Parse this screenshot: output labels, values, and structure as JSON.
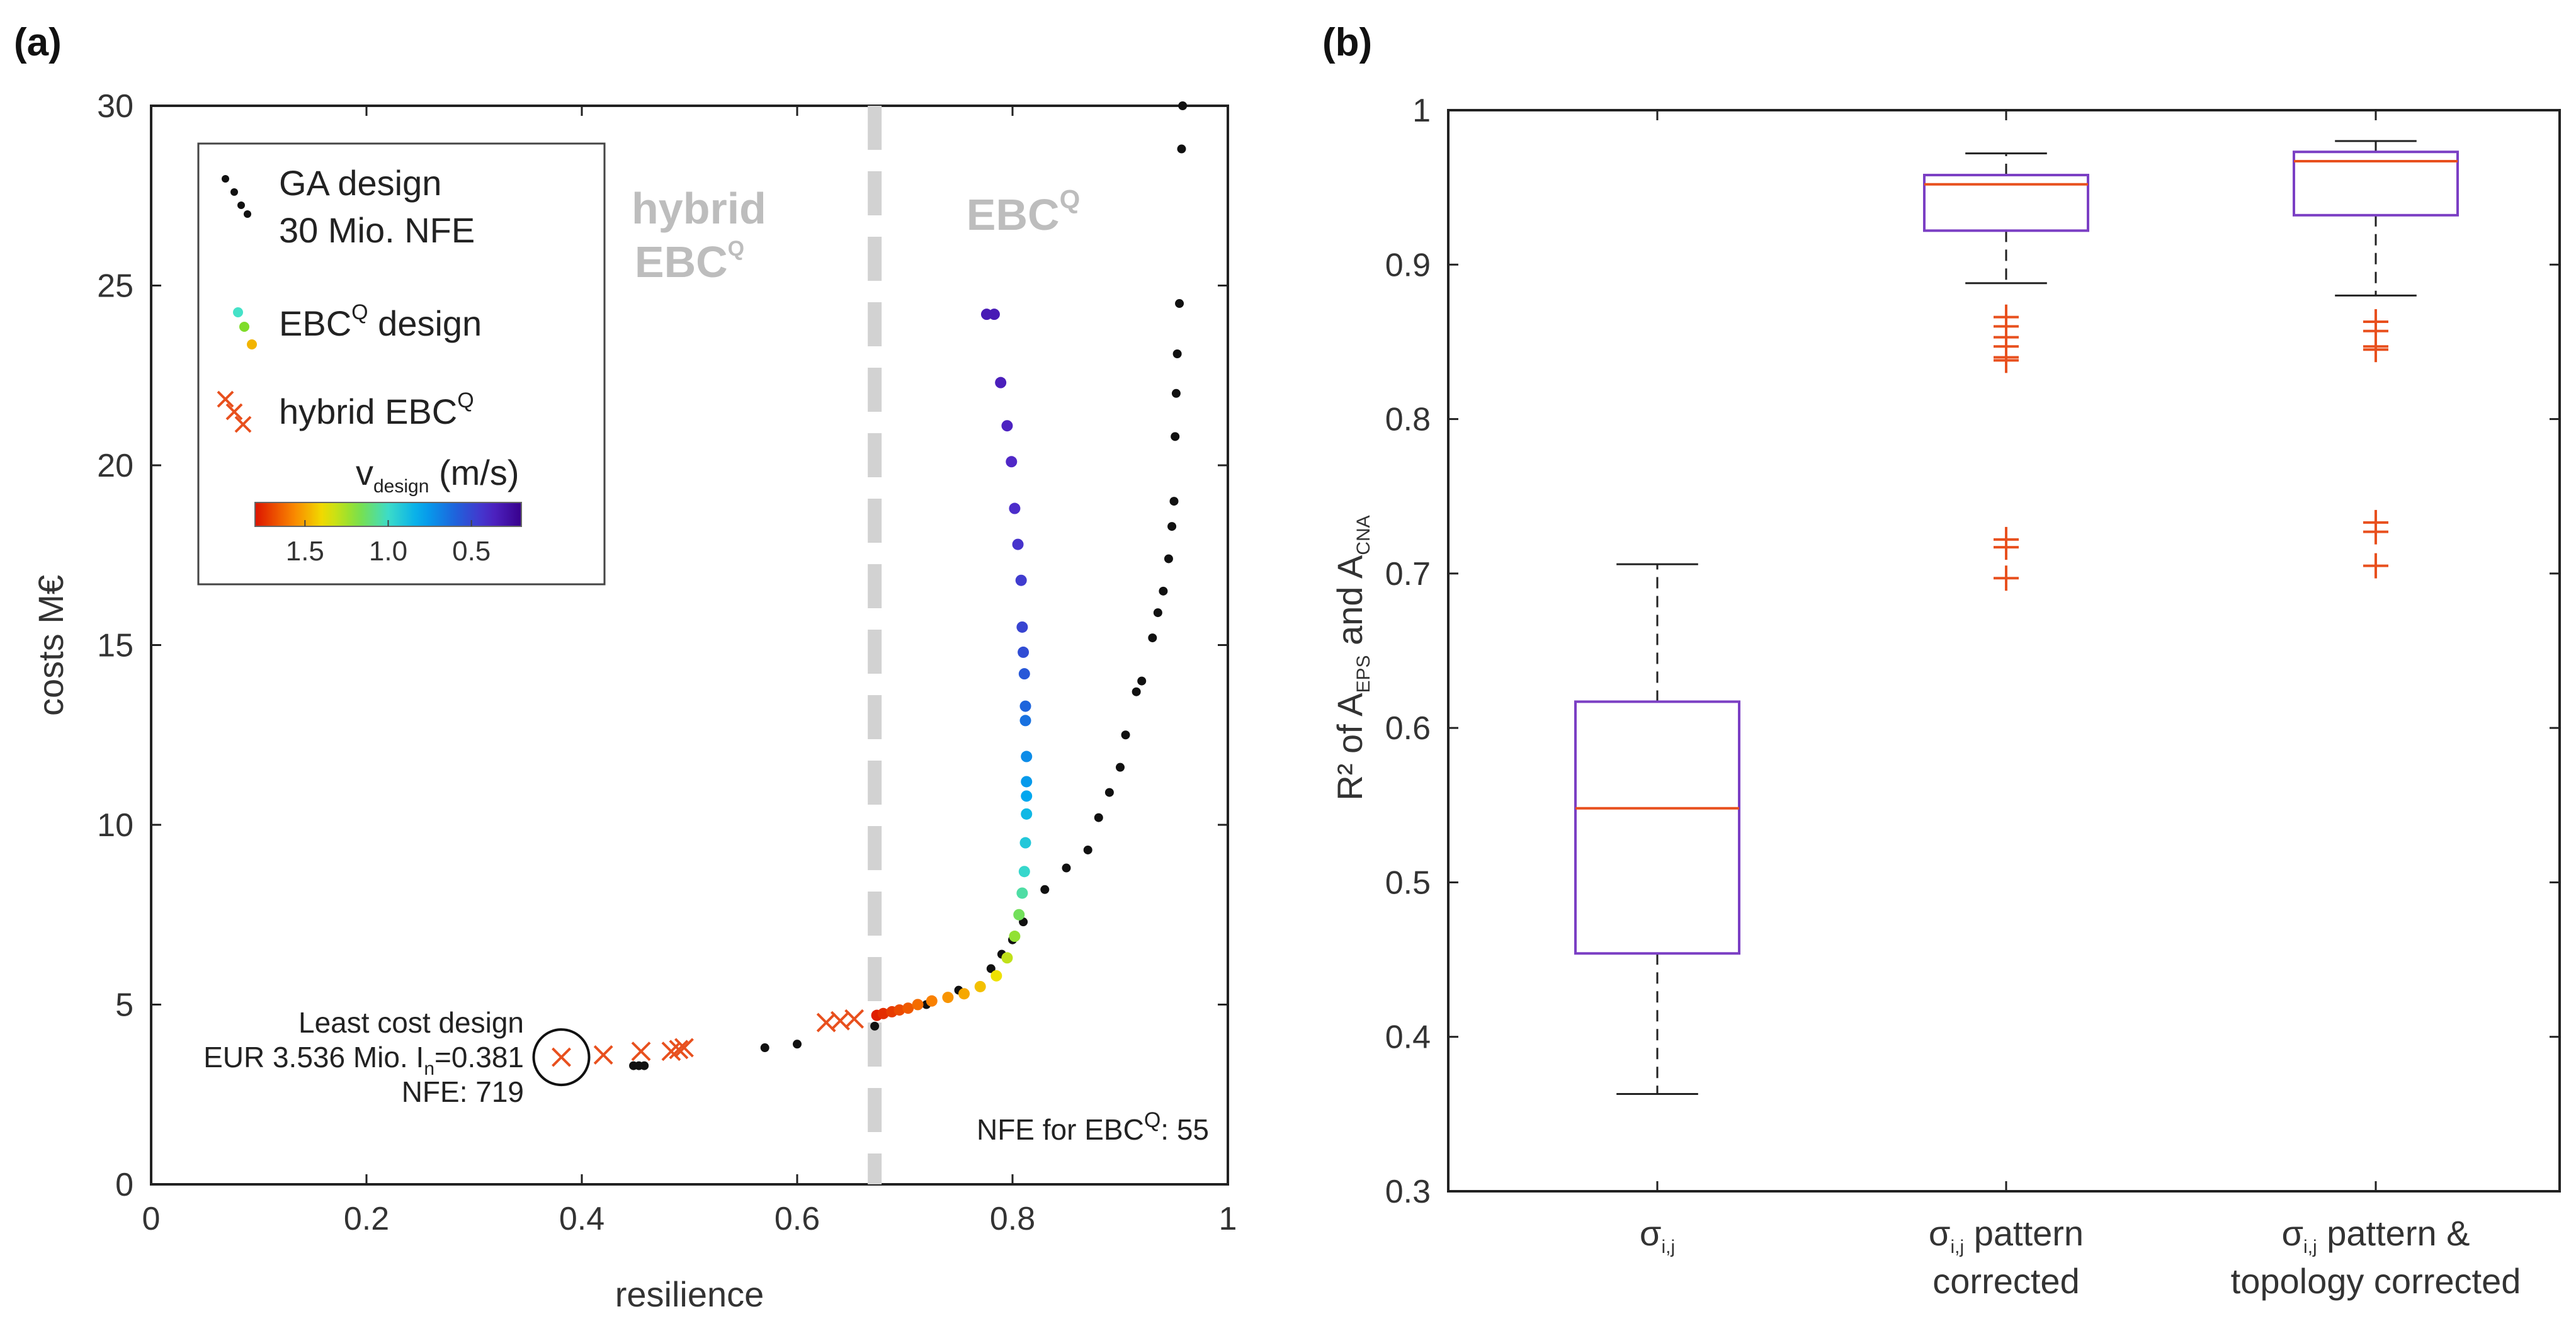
{
  "chart_data": [
    {
      "panel": "(a)",
      "type": "scatter",
      "xlabel": "resilience",
      "ylabel": "costs M€",
      "xlim": [
        0,
        1
      ],
      "ylim": [
        0,
        30
      ],
      "xticks": [
        "0",
        "0.2",
        "0.4",
        "0.6",
        "0.8",
        "1"
      ],
      "yticks": [
        "0",
        "5",
        "10",
        "15",
        "20",
        "25",
        "30"
      ],
      "grid": false,
      "legend_position": "top-left",
      "boundary_line_x": 0.672,
      "regions": {
        "left": [
          "hybrid",
          "EBC",
          "Q"
        ],
        "right": [
          "EBC",
          "Q"
        ]
      },
      "legend": {
        "ga_line1": "GA design",
        "ga_line2": "30 Mio. NFE",
        "ebc_main": "EBC",
        "ebc_sup": "Q",
        "ebc_tail": " design",
        "hybrid_main": "hybrid EBC",
        "hybrid_sup": "Q",
        "colorbar_title": "v",
        "colorbar_sub": "design",
        "colorbar_unit": " (m/s)",
        "colorbar_ticks": [
          "1.5",
          "1.0",
          "0.5"
        ],
        "colormap_vmin": 0.2,
        "colormap_vmax": 1.8
      },
      "annotations": {
        "least_cost_line1": "Least cost design",
        "least_cost_line2_a": "EUR 3.536 Mio. I",
        "least_cost_line2_sub": "n",
        "least_cost_line2_b": "=0.381",
        "least_cost_line3": "NFE: 719",
        "nfe_main": "NFE for EBC",
        "nfe_sup": "Q",
        "nfe_tail": ": 55"
      },
      "series": [
        {
          "name": "GA design 30 Mio. NFE",
          "marker": "dot",
          "color": "#111111",
          "x": [
            0.448,
            0.453,
            0.458,
            0.57,
            0.6,
            0.672,
            0.72,
            0.75,
            0.78,
            0.79,
            0.8,
            0.81,
            0.83,
            0.85,
            0.87,
            0.88,
            0.89,
            0.9,
            0.905,
            0.915,
            0.92,
            0.93,
            0.935,
            0.94,
            0.945,
            0.948,
            0.95,
            0.951,
            0.952,
            0.953,
            0.955,
            0.957,
            0.958
          ],
          "y": [
            3.3,
            3.3,
            3.3,
            3.8,
            3.9,
            4.4,
            5.0,
            5.4,
            6.0,
            6.4,
            6.8,
            7.3,
            8.2,
            8.8,
            9.3,
            10.2,
            10.9,
            11.6,
            12.5,
            13.7,
            14.0,
            15.2,
            15.9,
            16.5,
            17.4,
            18.3,
            19.0,
            20.8,
            22.0,
            23.1,
            24.5,
            28.8,
            30.0
          ]
        },
        {
          "name": "EBC^Q design",
          "marker": "dot",
          "colored_by": "v_design",
          "x": [
            0.674,
            0.68,
            0.688,
            0.695,
            0.703,
            0.712,
            0.725,
            0.74,
            0.755,
            0.77,
            0.785,
            0.795,
            0.802,
            0.806,
            0.809,
            0.811,
            0.812,
            0.813,
            0.813,
            0.813,
            0.813,
            0.812,
            0.812,
            0.811,
            0.81,
            0.809,
            0.808,
            0.805,
            0.802,
            0.799,
            0.795,
            0.789,
            0.783,
            0.776
          ],
          "y": [
            4.7,
            4.75,
            4.8,
            4.85,
            4.9,
            5.0,
            5.1,
            5.2,
            5.3,
            5.5,
            5.8,
            6.3,
            6.9,
            7.5,
            8.1,
            8.7,
            9.5,
            10.3,
            10.8,
            11.2,
            11.9,
            12.9,
            13.3,
            14.2,
            14.8,
            15.5,
            16.8,
            17.8,
            18.8,
            20.1,
            21.1,
            22.3,
            24.2,
            24.2
          ],
          "v": [
            1.78,
            1.75,
            1.72,
            1.69,
            1.66,
            1.62,
            1.58,
            1.54,
            1.5,
            1.45,
            1.38,
            1.3,
            1.22,
            1.15,
            1.05,
            0.98,
            0.92,
            0.86,
            0.8,
            0.76,
            0.72,
            0.64,
            0.6,
            0.56,
            0.52,
            0.49,
            0.46,
            0.43,
            0.41,
            0.39,
            0.37,
            0.35,
            0.33,
            0.33
          ]
        },
        {
          "name": "hybrid EBC^Q",
          "marker": "x",
          "color": "#e8501e",
          "x": [
            0.381,
            0.42,
            0.455,
            0.483,
            0.49,
            0.495,
            0.627,
            0.64,
            0.653
          ],
          "y": [
            3.536,
            3.6,
            3.7,
            3.7,
            3.75,
            3.8,
            4.5,
            4.55,
            4.6
          ]
        }
      ]
    },
    {
      "panel": "(b)",
      "type": "box",
      "ylabel_main": "R² of A",
      "ylabel_sub1": "EPS",
      "ylabel_mid": "  and A",
      "ylabel_sub2": "CNA",
      "ylim": [
        0.3,
        1
      ],
      "yticks": [
        "0.3",
        "0.4",
        "0.5",
        "0.6",
        "0.7",
        "0.8",
        "0.9",
        "1"
      ],
      "grid": false,
      "box_color": "#7b3fc4",
      "median_color": "#e8501e",
      "outlier_color": "#e8501e",
      "boxes": [
        {
          "sym": "σ",
          "sub": "i,j",
          "label_tail": "",
          "label_line2": "",
          "whisker_low": 0.363,
          "q1": 0.454,
          "median": 0.548,
          "q3": 0.617,
          "whisker_high": 0.706,
          "outliers": []
        },
        {
          "sym": "σ",
          "sub": "i,j",
          "label_tail": " pattern",
          "label_line2": "corrected",
          "whisker_low": 0.888,
          "q1": 0.922,
          "median": 0.952,
          "q3": 0.958,
          "whisker_high": 0.972,
          "outliers": [
            0.866,
            0.86,
            0.853,
            0.847,
            0.84,
            0.838,
            0.722,
            0.717,
            0.697
          ]
        },
        {
          "sym": "σ",
          "sub": "i,j",
          "label_tail": " pattern &",
          "label_line2": "topology corrected",
          "whisker_low": 0.88,
          "q1": 0.932,
          "median": 0.967,
          "q3": 0.973,
          "whisker_high": 0.98,
          "outliers": [
            0.863,
            0.857,
            0.847,
            0.845,
            0.733,
            0.727,
            0.705
          ]
        }
      ]
    }
  ]
}
